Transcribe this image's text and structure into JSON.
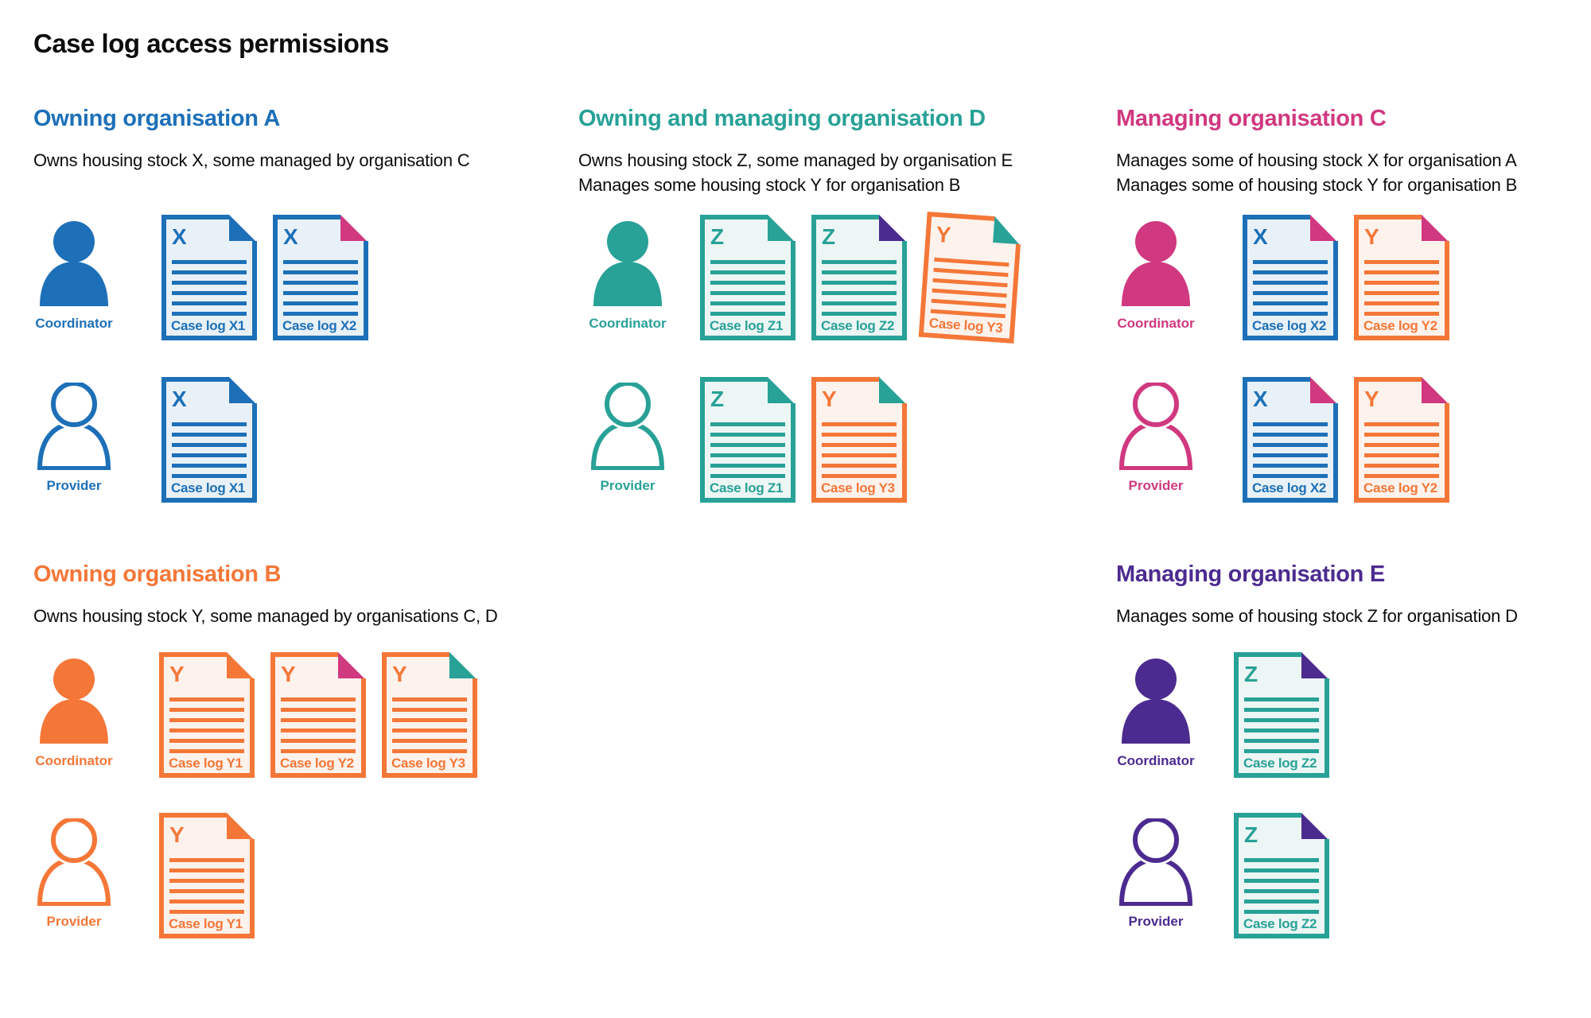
{
  "title": "Case log access permissions",
  "palette": {
    "blue": {
      "main": "#1d70b8",
      "light": "#e9f1f8"
    },
    "teal": {
      "main": "#28a197",
      "light": "#ecf6f4"
    },
    "orange": {
      "main": "#f47738",
      "light": "#fdf2ec"
    },
    "pink": {
      "main": "#d0387f",
      "light": "#fbebf3"
    },
    "purple": {
      "main": "#4c2b90",
      "light": "#ece8f4"
    },
    "text": "#0b0c0c"
  },
  "sections": [
    {
      "id": "owning-organisation-a",
      "heading": "Owning organisation A",
      "color": "blue",
      "subtitle": [
        "Owns housing stock X, some managed by organisation C"
      ],
      "rows": [
        {
          "role": "coordinator",
          "label": "Coordinator",
          "docs": [
            {
              "letter": "X",
              "label": "Case log X1",
              "color": "blue",
              "fold": "blue"
            },
            {
              "letter": "X",
              "label": "Case log X2",
              "color": "blue",
              "fold": "pink"
            }
          ]
        },
        {
          "role": "provider",
          "label": "Provider",
          "docs": [
            {
              "letter": "X",
              "label": "Case log X1",
              "color": "blue",
              "fold": "blue"
            }
          ]
        }
      ]
    },
    {
      "id": "owning-and-managing-organisation-d",
      "heading": "Owning and managing organisation D",
      "color": "teal",
      "subtitle": [
        "Owns housing stock Z, some managed by organisation E",
        "Manages some housing stock Y for organisation B"
      ],
      "rows": [
        {
          "role": "coordinator",
          "label": "Coordinator",
          "docs": [
            {
              "letter": "Z",
              "label": "Case log Z1",
              "color": "teal",
              "fold": "teal"
            },
            {
              "letter": "Z",
              "label": "Case log Z2",
              "color": "teal",
              "fold": "purple"
            },
            {
              "letter": "Y",
              "label": "Case log Y3",
              "color": "orange",
              "fold": "teal",
              "tilt": 4
            }
          ]
        },
        {
          "role": "provider",
          "label": "Provider",
          "docs": [
            {
              "letter": "Z",
              "label": "Case log Z1",
              "color": "teal",
              "fold": "teal"
            },
            {
              "letter": "Y",
              "label": "Case log Y3",
              "color": "orange",
              "fold": "teal"
            }
          ]
        }
      ]
    },
    {
      "id": "managing-organisation-c",
      "heading": "Managing organisation C",
      "color": "pink",
      "subtitle": [
        "Manages some of housing stock X for organisation A",
        "Manages some of housing stock Y for organisation B"
      ],
      "rows": [
        {
          "role": "coordinator",
          "label": "Coordinator",
          "docs": [
            {
              "letter": "X",
              "label": "Case log X2",
              "color": "blue",
              "fold": "pink"
            },
            {
              "letter": "Y",
              "label": "Case log Y2",
              "color": "orange",
              "fold": "pink"
            }
          ]
        },
        {
          "role": "provider",
          "label": "Provider",
          "docs": [
            {
              "letter": "X",
              "label": "Case log X2",
              "color": "blue",
              "fold": "pink"
            },
            {
              "letter": "Y",
              "label": "Case log Y2",
              "color": "orange",
              "fold": "pink"
            }
          ]
        }
      ]
    },
    {
      "id": "owning-organisation-b",
      "heading": "Owning organisation B",
      "color": "orange",
      "subtitle": [
        "Owns housing stock Y, some managed by organisations C, D"
      ],
      "rows": [
        {
          "role": "coordinator",
          "label": "Coordinator",
          "docs": [
            {
              "letter": "Y",
              "label": "Case log Y1",
              "color": "orange",
              "fold": "orange"
            },
            {
              "letter": "Y",
              "label": "Case log Y2",
              "color": "orange",
              "fold": "pink"
            },
            {
              "letter": "Y",
              "label": "Case log Y3",
              "color": "orange",
              "fold": "teal"
            }
          ]
        },
        {
          "role": "provider",
          "label": "Provider",
          "docs": [
            {
              "letter": "Y",
              "label": "Case log Y1",
              "color": "orange",
              "fold": "orange"
            }
          ]
        }
      ]
    },
    {
      "id": "managing-organisation-e",
      "heading": "Managing organisation E",
      "color": "purple",
      "subtitle": [
        "Manages some of housing stock Z for organisation D"
      ],
      "rows": [
        {
          "role": "coordinator",
          "label": "Coordinator",
          "docs": [
            {
              "letter": "Z",
              "label": "Case log Z2",
              "color": "teal",
              "fold": "purple"
            }
          ]
        },
        {
          "role": "provider",
          "label": "Provider",
          "docs": [
            {
              "letter": "Z",
              "label": "Case log Z2",
              "color": "teal",
              "fold": "purple"
            }
          ]
        }
      ]
    }
  ]
}
